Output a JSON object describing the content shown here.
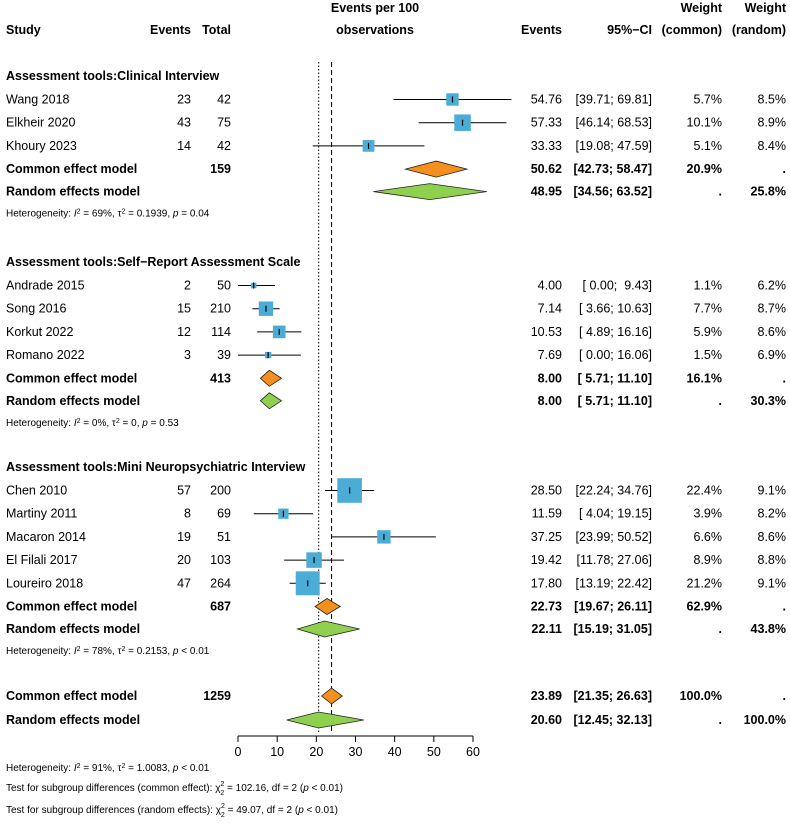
{
  "header": {
    "study": "Study",
    "events": "Events",
    "total": "Total",
    "plot_line1": "Events per 100",
    "plot_line2": "observations",
    "events_est": "Events",
    "ci": "95%−CI",
    "w_common_line1": "Weight",
    "w_common_line2": "(common)",
    "w_random_line1": "Weight",
    "w_random_line2": "(random)"
  },
  "colors": {
    "square": "#4bacd6",
    "common_diamond": "#f5901e",
    "random_diamond": "#8fd14f"
  },
  "chart_data": {
    "type": "forest",
    "xlim": [
      0,
      60
    ],
    "ticks": [
      "0",
      "10",
      "20",
      "30",
      "40",
      "50",
      "60"
    ],
    "tick_values": [
      0,
      10,
      20,
      30,
      40,
      50,
      60
    ],
    "reference_dotted": 20.6,
    "reference_dashed": 23.89,
    "groups": [
      {
        "title": "Assessment tools:Clinical Interview",
        "studies": [
          {
            "study": "Wang 2018",
            "events": "23",
            "total": "42",
            "est": 54.76,
            "lo": 39.71,
            "hi": 69.81,
            "est_text": "54.76",
            "ci_text": "[39.71; 69.81]",
            "w_common": "5.7%",
            "w_random": "8.5%"
          },
          {
            "study": "Elkheir 2020",
            "events": "43",
            "total": "75",
            "est": 57.33,
            "lo": 46.14,
            "hi": 68.53,
            "est_text": "57.33",
            "ci_text": "[46.14; 68.53]",
            "w_common": "10.1%",
            "w_random": "8.9%"
          },
          {
            "study": "Khoury 2023",
            "events": "14",
            "total": "42",
            "est": 33.33,
            "lo": 19.08,
            "hi": 47.59,
            "est_text": "33.33",
            "ci_text": "[19.08; 47.59]",
            "w_common": "5.1%",
            "w_random": "8.4%"
          }
        ],
        "common": {
          "label": "Common effect model",
          "total": "159",
          "est": 50.62,
          "lo": 42.73,
          "hi": 58.47,
          "est_text": "50.62",
          "ci_text": "[42.73; 58.47]",
          "w_common": "20.9%",
          "w_random": "."
        },
        "random": {
          "label": "Random effects model",
          "est": 48.95,
          "lo": 34.56,
          "hi": 63.52,
          "est_text": "48.95",
          "ci_text": "[34.56; 63.52]",
          "w_common": ".",
          "w_random": "25.8%"
        },
        "het": {
          "prefix": "Heterogeneity: ",
          "i_sym": "I",
          "i_val": " = 69%, ",
          "tau_sym": "τ",
          "tau_val": " = 0.1939, ",
          "p_sym": "p",
          "p_val": " = 0.04"
        }
      },
      {
        "title": "Assessment tools:Self−Report Assessment Scale",
        "studies": [
          {
            "study": "Andrade 2015",
            "events": "2",
            "total": "50",
            "est": 4.0,
            "lo": 0.0,
            "hi": 9.43,
            "est_text": "4.00",
            "ci_text": "[ 0.00;  9.43]",
            "w_common": "1.1%",
            "w_random": "6.2%"
          },
          {
            "study": "Song 2016",
            "events": "15",
            "total": "210",
            "est": 7.14,
            "lo": 3.66,
            "hi": 10.63,
            "est_text": "7.14",
            "ci_text": "[ 3.66; 10.63]",
            "w_common": "7.7%",
            "w_random": "8.7%"
          },
          {
            "study": "Korkut 2022",
            "events": "12",
            "total": "114",
            "est": 10.53,
            "lo": 4.89,
            "hi": 16.16,
            "est_text": "10.53",
            "ci_text": "[ 4.89; 16.16]",
            "w_common": "5.9%",
            "w_random": "8.6%"
          },
          {
            "study": "Romano 2022",
            "events": "3",
            "total": "39",
            "est": 7.69,
            "lo": 0.0,
            "hi": 16.06,
            "est_text": "7.69",
            "ci_text": "[ 0.00; 16.06]",
            "w_common": "1.5%",
            "w_random": "6.9%"
          }
        ],
        "common": {
          "label": "Common effect model",
          "total": "413",
          "est": 8.0,
          "lo": 5.71,
          "hi": 11.1,
          "est_text": "8.00",
          "ci_text": "[ 5.71; 11.10]",
          "w_common": "16.1%",
          "w_random": "."
        },
        "random": {
          "label": "Random effects model",
          "est": 8.0,
          "lo": 5.71,
          "hi": 11.1,
          "est_text": "8.00",
          "ci_text": "[ 5.71; 11.10]",
          "w_common": ".",
          "w_random": "30.3%"
        },
        "het": {
          "prefix": "Heterogeneity: ",
          "i_sym": "I",
          "i_val": " = 0%, ",
          "tau_sym": "τ",
          "tau_val": " = 0, ",
          "p_sym": "p",
          "p_val": " = 0.53"
        }
      },
      {
        "title": "Assessment tools:Mini Neuropsychiatric Interview",
        "studies": [
          {
            "study": "Chen 2010",
            "events": "57",
            "total": "200",
            "est": 28.5,
            "lo": 22.24,
            "hi": 34.76,
            "est_text": "28.50",
            "ci_text": "[22.24; 34.76]",
            "w_common": "22.4%",
            "w_random": "9.1%"
          },
          {
            "study": "Martiny 2011",
            "events": "8",
            "total": "69",
            "est": 11.59,
            "lo": 4.04,
            "hi": 19.15,
            "est_text": "11.59",
            "ci_text": "[ 4.04; 19.15]",
            "w_common": "3.9%",
            "w_random": "8.2%"
          },
          {
            "study": "Macaron 2014",
            "events": "19",
            "total": "51",
            "est": 37.25,
            "lo": 23.99,
            "hi": 50.52,
            "est_text": "37.25",
            "ci_text": "[23.99; 50.52]",
            "w_common": "6.6%",
            "w_random": "8.6%"
          },
          {
            "study": "El Filali 2017",
            "events": "20",
            "total": "103",
            "est": 19.42,
            "lo": 11.78,
            "hi": 27.06,
            "est_text": "19.42",
            "ci_text": "[11.78; 27.06]",
            "w_common": "8.9%",
            "w_random": "8.8%"
          },
          {
            "study": "Loureiro 2018",
            "events": "47",
            "total": "264",
            "est": 17.8,
            "lo": 13.19,
            "hi": 22.42,
            "est_text": "17.80",
            "ci_text": "[13.19; 22.42]",
            "w_common": "21.2%",
            "w_random": "9.1%"
          }
        ],
        "common": {
          "label": "Common effect model",
          "total": "687",
          "est": 22.73,
          "lo": 19.67,
          "hi": 26.11,
          "est_text": "22.73",
          "ci_text": "[19.67; 26.11]",
          "w_common": "62.9%",
          "w_random": "."
        },
        "random": {
          "label": "Random effects model",
          "est": 22.11,
          "lo": 15.19,
          "hi": 31.05,
          "est_text": "22.11",
          "ci_text": "[15.19; 31.05]",
          "w_common": ".",
          "w_random": "43.8%"
        },
        "het": {
          "prefix": "Heterogeneity: ",
          "i_sym": "I",
          "i_val": " = 78%, ",
          "tau_sym": "τ",
          "tau_val": " = 0.2153, ",
          "p_sym": "p",
          "p_val": " < 0.01"
        }
      }
    ],
    "overall": {
      "common": {
        "label": "Common effect model",
        "total": "1259",
        "est": 23.89,
        "lo": 21.35,
        "hi": 26.63,
        "est_text": "23.89",
        "ci_text": "[21.35; 26.63]",
        "w_common": "100.0%",
        "w_random": "."
      },
      "random": {
        "label": "Random effects model",
        "est": 20.6,
        "lo": 12.45,
        "hi": 32.13,
        "est_text": "20.60",
        "ci_text": "[12.45; 32.13]",
        "w_common": ".",
        "w_random": "100.0%"
      },
      "het": {
        "prefix": "Heterogeneity: ",
        "i_sym": "I",
        "i_val": " = 91%, ",
        "tau_sym": "τ",
        "tau_val": " = 1.0083, ",
        "p_sym": "p",
        "p_val": " < 0.01"
      }
    },
    "footer": [
      {
        "prefix": "Test for subgroup differences (common effect): ",
        "chi_sym": "χ",
        "chi_sub": "2",
        "chi_sup": "2",
        "val": " = 102.16, df = 2 (",
        "p_sym": "p",
        "p_val": " < 0.01)"
      },
      {
        "prefix": "Test for subgroup differences (random effects): ",
        "chi_sym": "χ",
        "chi_sub": "2",
        "chi_sup": "2",
        "val": " = 49.07, df = 2 (",
        "p_sym": "p",
        "p_val": " < 0.01)"
      }
    ]
  }
}
